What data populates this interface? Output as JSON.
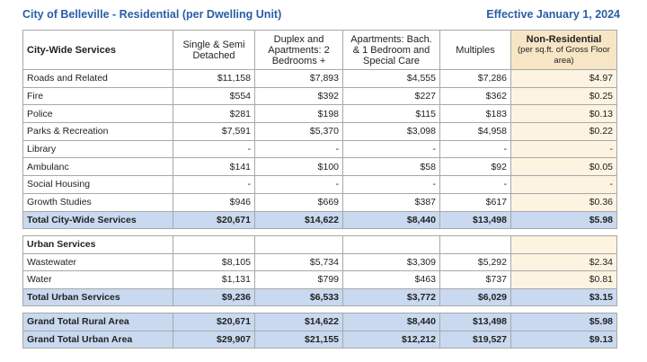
{
  "header": {
    "title": "City of Belleville - Residential (per Dwelling Unit)",
    "effective": "Effective January 1, 2024"
  },
  "table": {
    "header_label": "City-Wide Services",
    "columns": [
      "Single & Semi Detached",
      "Duplex and Apartments: 2 Bedrooms +",
      "Apartments: Bach. & 1 Bedroom and Special Care",
      "Multiples"
    ],
    "non_residential": {
      "title": "Non-Residential",
      "note": "(per sq.ft. of Gross Floor area)"
    },
    "city_rows": [
      {
        "label": "Roads and Related",
        "values": [
          "$11,158",
          "$7,893",
          "$4,555",
          "$7,286",
          "$4.97"
        ]
      },
      {
        "label": "Fire",
        "values": [
          "$554",
          "$392",
          "$227",
          "$362",
          "$0.25"
        ]
      },
      {
        "label": "Police",
        "values": [
          "$281",
          "$198",
          "$115",
          "$183",
          "$0.13"
        ]
      },
      {
        "label": "Parks & Recreation",
        "values": [
          "$7,591",
          "$5,370",
          "$3,098",
          "$4,958",
          "$0.22"
        ]
      },
      {
        "label": "Library",
        "values": [
          "-",
          "-",
          "-",
          "-",
          "-"
        ]
      },
      {
        "label": "Ambulanc",
        "values": [
          "$141",
          "$100",
          "$58",
          "$92",
          "$0.05"
        ]
      },
      {
        "label": "Social Housing",
        "values": [
          "-",
          "-",
          "-",
          "-",
          "-"
        ]
      },
      {
        "label": "Growth Studies",
        "values": [
          "$946",
          "$669",
          "$387",
          "$617",
          "$0.36"
        ]
      }
    ],
    "city_total": {
      "label": "Total City-Wide Services",
      "values": [
        "$20,671",
        "$14,622",
        "$8,440",
        "$13,498",
        "$5.98"
      ]
    },
    "urban_heading": "Urban Services",
    "urban_rows": [
      {
        "label": "Wastewater",
        "values": [
          "$8,105",
          "$5,734",
          "$3,309",
          "$5,292",
          "$2.34"
        ]
      },
      {
        "label": "Water",
        "values": [
          "$1,131",
          "$799",
          "$463",
          "$737",
          "$0.81"
        ]
      }
    ],
    "urban_total": {
      "label": "Total Urban Services",
      "values": [
        "$9,236",
        "$6,533",
        "$3,772",
        "$6,029",
        "$3.15"
      ]
    },
    "grand_rows": [
      {
        "label": "Grand Total Rural Area",
        "values": [
          "$20,671",
          "$14,622",
          "$8,440",
          "$13,498",
          "$5.98"
        ]
      },
      {
        "label": "Grand Total Urban Area",
        "values": [
          "$29,907",
          "$21,155",
          "$12,212",
          "$19,527",
          "$9.13"
        ]
      }
    ]
  }
}
